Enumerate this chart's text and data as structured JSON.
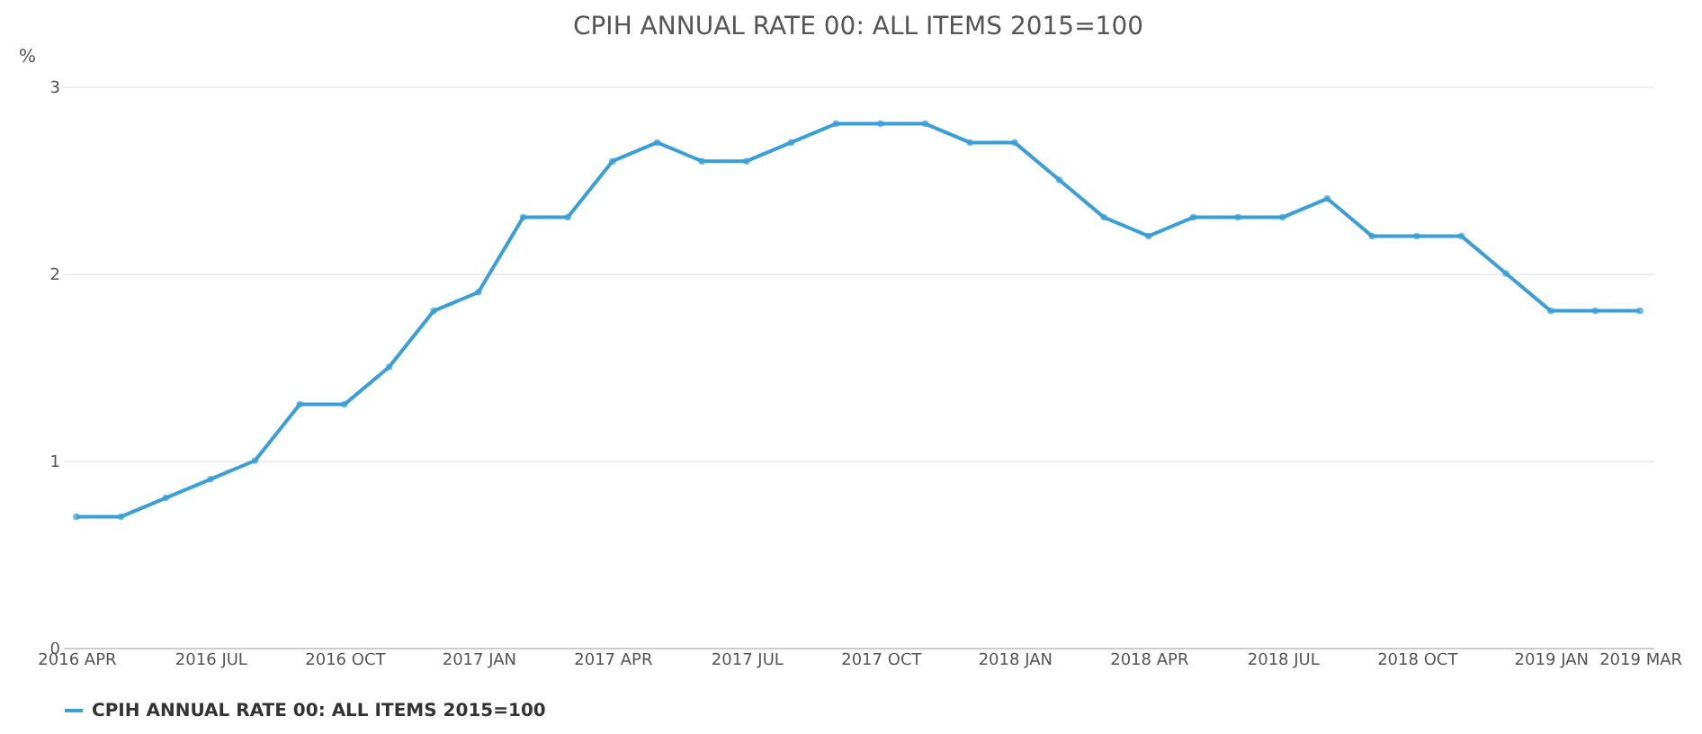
{
  "chart_data": {
    "type": "line",
    "title": "CPIH ANNUAL RATE 00: ALL ITEMS 2015=100",
    "ylabel": "%",
    "categories": [
      "2016 APR",
      null,
      null,
      "2016 JUL",
      null,
      null,
      "2016 OCT",
      null,
      null,
      "2017 JAN",
      null,
      null,
      "2017 APR",
      null,
      null,
      "2017 JUL",
      null,
      null,
      "2017 OCT",
      null,
      null,
      "2018 JAN",
      null,
      null,
      "2018 APR",
      null,
      null,
      "2018 JUL",
      null,
      null,
      "2018 OCT",
      null,
      null,
      "2019 JAN",
      null,
      "2019 MAR"
    ],
    "series": [
      {
        "name": "CPIH ANNUAL RATE 00: ALL ITEMS 2015=100",
        "color": "#3a9fd6",
        "values": [
          0.7,
          0.7,
          0.8,
          0.9,
          1.0,
          1.3,
          1.3,
          1.5,
          1.8,
          1.9,
          2.3,
          2.3,
          2.6,
          2.7,
          2.6,
          2.6,
          2.7,
          2.8,
          2.8,
          2.8,
          2.7,
          2.7,
          2.5,
          2.3,
          2.2,
          2.3,
          2.3,
          2.3,
          2.4,
          2.2,
          2.2,
          2.2,
          2.0,
          1.8,
          1.8,
          1.8
        ]
      }
    ],
    "ylim": [
      0,
      3
    ],
    "yticks": [
      0,
      1,
      2,
      3
    ],
    "grid": "y",
    "legend": "bottom",
    "marker": "circle",
    "line_style": "solid"
  }
}
